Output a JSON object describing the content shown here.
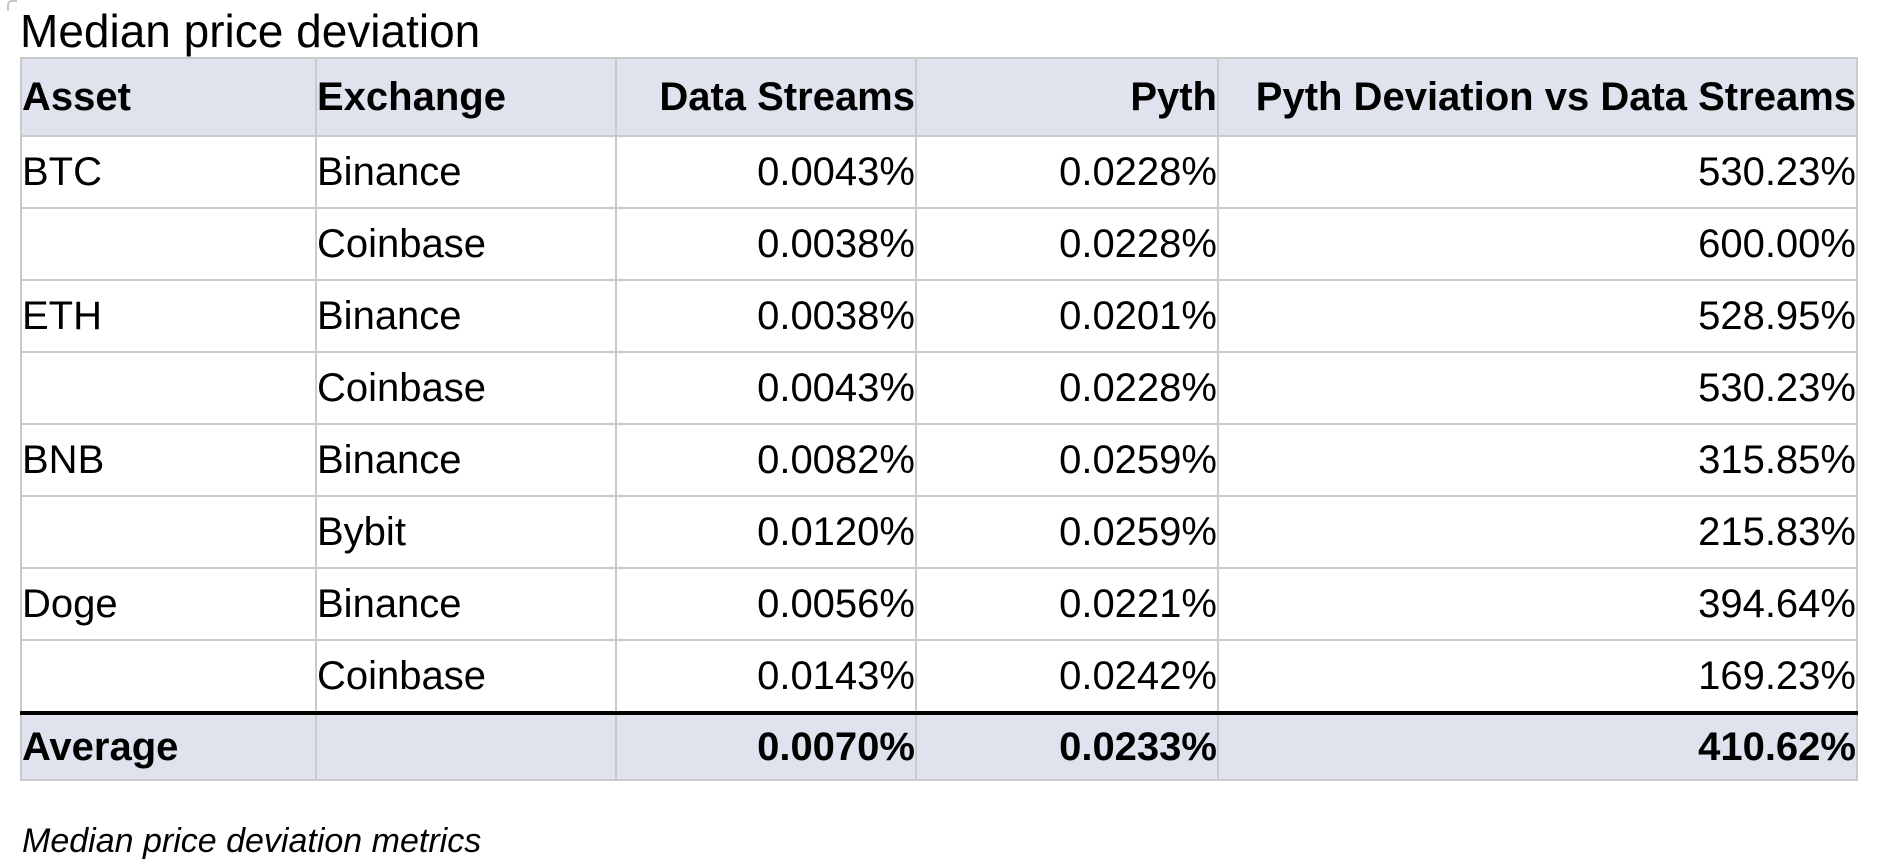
{
  "title": "Median price deviation",
  "caption": "Median price deviation metrics",
  "colors": {
    "header_background": "#dee3ed",
    "footer_background": "#dee3ed",
    "grid_line": "#cacaca",
    "heavy_rule": "#000000",
    "text": "#000000",
    "page_background": "#ffffff"
  },
  "table": {
    "columns": [
      {
        "label": "Asset"
      },
      {
        "label": "Exchange"
      },
      {
        "label": "Data Streams"
      },
      {
        "label": "Pyth"
      },
      {
        "label": "Pyth Deviation vs Data Streams"
      }
    ],
    "column_keys": [
      "asset",
      "exchange",
      "data-streams",
      "pyth",
      "pyth-deviation"
    ],
    "rows": [
      [
        "BTC",
        "Binance",
        "0.0043%",
        "0.0228%",
        "530.23%"
      ],
      [
        "",
        "Coinbase",
        "0.0038%",
        "0.0228%",
        "600.00%"
      ],
      [
        "ETH",
        "Binance",
        "0.0038%",
        "0.0201%",
        "528.95%"
      ],
      [
        "",
        "Coinbase",
        "0.0043%",
        "0.0228%",
        "530.23%"
      ],
      [
        "BNB",
        "Binance",
        "0.0082%",
        "0.0259%",
        "315.85%"
      ],
      [
        "",
        "Bybit",
        "0.0120%",
        "0.0259%",
        "215.83%"
      ],
      [
        "Doge",
        "Binance",
        "0.0056%",
        "0.0221%",
        "394.64%"
      ],
      [
        "",
        "Coinbase",
        "0.0143%",
        "0.0242%",
        "169.23%"
      ]
    ],
    "footer": [
      "Average",
      "",
      "0.0070%",
      "0.0233%",
      "410.62%"
    ]
  }
}
